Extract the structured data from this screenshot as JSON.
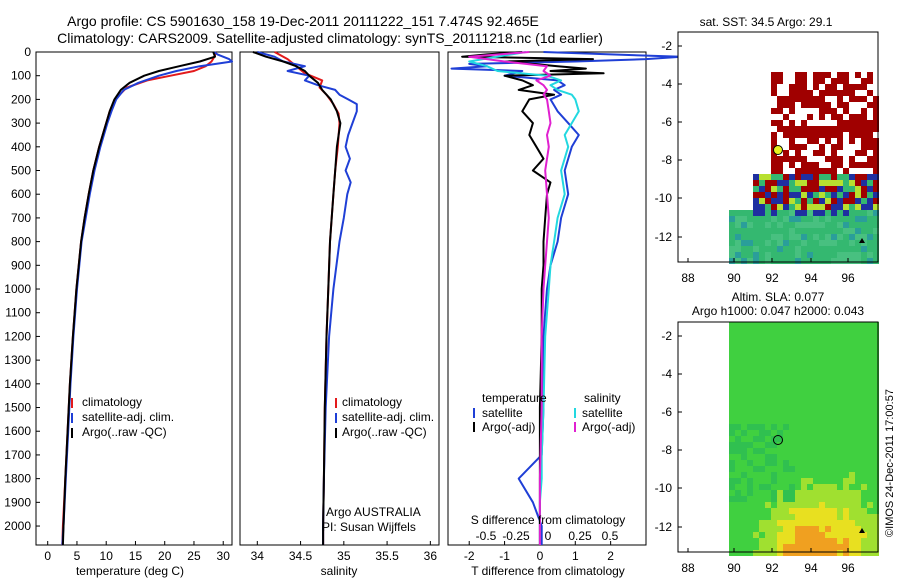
{
  "title_line1": "Argo profile: CS 5901630_158 19-Dec-2011 20111222_151 7.474S 92.465E",
  "title_line2": "Climatology: CARS2009. Satellite-adjusted climatology: synTS_20111218.nc (1d earlier)",
  "colors": {
    "climatology": "#e31a1c",
    "satellite": "#1f3fd6",
    "argo": "#000000",
    "sat_salinity": "#22d8e0",
    "argo_adj": "#e020d0"
  },
  "chart_data": [
    {
      "type": "line",
      "id": "temperature",
      "xlabel": "temperature (deg C)",
      "xlim": [
        -2,
        31.5
      ],
      "xticks": [
        0,
        5,
        10,
        15,
        20,
        25,
        30
      ],
      "ylim": [
        0,
        2080
      ],
      "yticks": [
        0,
        100,
        200,
        300,
        400,
        500,
        600,
        700,
        800,
        900,
        1000,
        1100,
        1200,
        1300,
        1400,
        1500,
        1600,
        1700,
        1800,
        1900,
        2000
      ],
      "legend": [
        "climatology",
        "satellite-adj. clim.",
        "Argo(..raw -QC)"
      ],
      "legend_placement": "lower-middle",
      "series": [
        {
          "name": "climatology",
          "color": "#e31a1c",
          "depth": [
            0,
            20,
            40,
            60,
            80,
            100,
            120,
            150,
            200,
            250,
            300,
            400,
            500,
            600,
            700,
            800,
            1000,
            1200,
            1400,
            1600,
            1800,
            2000,
            2080
          ],
          "values": [
            28.8,
            28.5,
            28,
            27,
            25,
            21,
            17,
            13.5,
            11.5,
            10.6,
            10,
            8.8,
            7.8,
            7,
            6.3,
            5.7,
            4.9,
            4.3,
            3.8,
            3.4,
            3.0,
            2.6,
            2.5
          ]
        },
        {
          "name": "satellite-adj. clim.",
          "color": "#1f3fd6",
          "depth": [
            0,
            10,
            30,
            40,
            60,
            80,
            100,
            130,
            160,
            200,
            250,
            300,
            400,
            500,
            600,
            700,
            800,
            1000,
            1200,
            1400,
            1600,
            1800,
            2000,
            2080
          ],
          "values": [
            28.5,
            29,
            31,
            31.5,
            26,
            22,
            19,
            15.5,
            13,
            11.7,
            10.9,
            10.2,
            9,
            8,
            7.2,
            6.5,
            5.8,
            5,
            4.4,
            3.9,
            3.5,
            3.1,
            2.7,
            2.5
          ]
        },
        {
          "name": "Argo(..raw -QC)",
          "color": "#000000",
          "depth": [
            0,
            20,
            40,
            60,
            80,
            100,
            130,
            160,
            200,
            250,
            300,
            400,
            500,
            600,
            700,
            800,
            1000,
            1200,
            1400,
            1600,
            1800,
            2000,
            2080
          ],
          "values": [
            28.3,
            28.6,
            26,
            22.5,
            19,
            16.5,
            14,
            12.5,
            11.4,
            10.6,
            10,
            8.8,
            7.8,
            7,
            6.3,
            5.7,
            4.9,
            4.3,
            3.8,
            3.4,
            3.0,
            2.7,
            2.6
          ]
        }
      ]
    },
    {
      "type": "line",
      "id": "salinity",
      "xlabel": "salinity",
      "xlim": [
        33.8,
        36.1
      ],
      "xticks": [
        34,
        34.5,
        35,
        35.5,
        36
      ],
      "legend": [
        "climatology",
        "satellite-adj. clim.",
        "Argo(..raw -QC)"
      ],
      "legend_placement": "lower-right",
      "annotation": [
        "Argo AUSTRALIA",
        "PI: Susan Wijffels"
      ],
      "series": [
        {
          "name": "climatology",
          "color": "#e31a1c",
          "depth": [
            0,
            30,
            60,
            90,
            120,
            150,
            180,
            220,
            260,
            300,
            400,
            500,
            600,
            800,
            1000,
            1200,
            1500,
            1800,
            2000,
            2080
          ],
          "values": [
            34.2,
            34.35,
            34.45,
            34.55,
            34.75,
            34.72,
            34.8,
            34.88,
            34.94,
            34.95,
            34.93,
            34.9,
            34.88,
            34.84,
            34.82,
            34.8,
            34.78,
            34.77,
            34.76,
            34.76
          ]
        },
        {
          "name": "satellite-adj. clim.",
          "color": "#1f3fd6",
          "depth": [
            0,
            20,
            40,
            60,
            80,
            100,
            120,
            140,
            160,
            180,
            200,
            220,
            250,
            300,
            350,
            400,
            450,
            500,
            550,
            600,
            700,
            800,
            1000,
            1200,
            1500,
            1800,
            2000,
            2080
          ],
          "values": [
            34.0,
            34.2,
            34.3,
            34.55,
            34.35,
            34.6,
            34.55,
            34.7,
            34.9,
            34.95,
            35.05,
            35.15,
            35.15,
            35.1,
            35.05,
            35.02,
            35.07,
            35.02,
            35.08,
            35.04,
            35.0,
            34.95,
            34.88,
            34.83,
            34.79,
            34.77,
            34.76,
            34.76
          ]
        },
        {
          "name": "Argo(..raw -QC)",
          "color": "#000000",
          "depth": [
            0,
            20,
            40,
            60,
            80,
            100,
            130,
            160,
            200,
            250,
            300,
            350,
            400,
            500,
            600,
            700,
            800,
            1000,
            1200,
            1500,
            1800,
            2000,
            2080
          ],
          "values": [
            33.95,
            34.1,
            34.3,
            34.45,
            34.55,
            34.6,
            34.7,
            34.75,
            34.85,
            34.92,
            34.96,
            34.94,
            34.92,
            34.9,
            34.88,
            34.86,
            34.84,
            34.82,
            34.8,
            34.78,
            34.77,
            34.76,
            34.76
          ]
        }
      ]
    },
    {
      "type": "line",
      "id": "differences",
      "xlabel": "T difference from climatology",
      "top_axis_label": "S difference from climatology",
      "xlim": [
        -2.6,
        3
      ],
      "xticks": [
        -2,
        -1,
        0,
        1,
        2
      ],
      "s_ticks": [
        "-0.5",
        "-0.25",
        "0",
        "0.25",
        "0.5"
      ],
      "legend_titles": [
        "temperature",
        "salinity"
      ],
      "legend": [
        "satellite",
        "Argo(-adj)",
        "satellite",
        "Argo(-adj)"
      ],
      "series": [
        {
          "name": "satellite",
          "color": "#1f3fd6",
          "depth": [
            0,
            10,
            20,
            30,
            40,
            50,
            60,
            70,
            80,
            100,
            120,
            140,
            160,
            180,
            200,
            250,
            300,
            350,
            400,
            500,
            600,
            700,
            800,
            900,
            1000,
            1100,
            1200,
            1500,
            1700,
            1800,
            1900,
            2000,
            2080
          ],
          "values": [
            0.1,
            2,
            4,
            3,
            1,
            -2,
            -1.5,
            -2.5,
            -0.5,
            -1,
            0.5,
            0.7,
            0.4,
            0.6,
            0.3,
            0.5,
            0.8,
            1.1,
            0.9,
            0.7,
            0.8,
            0.6,
            0.5,
            0.3,
            0.2,
            0.15,
            0.1,
            0.1,
            0.05,
            -0.6,
            -0.2,
            0.05,
            0.05
          ]
        },
        {
          "name": "Argo(-adj)",
          "color": "#000000",
          "depth": [
            0,
            10,
            20,
            30,
            40,
            50,
            60,
            70,
            80,
            90,
            100,
            120,
            140,
            160,
            180,
            200,
            250,
            300,
            350,
            400,
            450,
            500,
            550,
            600,
            700,
            800,
            900,
            1000,
            1200,
            1500,
            1800,
            2000,
            2080
          ],
          "values": [
            -0.5,
            -1.5,
            -2.2,
            1.5,
            -1,
            -0.2,
            0.5,
            1.3,
            0.3,
            1.8,
            -1,
            -0.5,
            -0.2,
            -0.6,
            0.4,
            -0.3,
            -0.5,
            -0.2,
            -0.3,
            -0.1,
            0.1,
            -0.2,
            0.3,
            0.2,
            0.15,
            0.1,
            0.1,
            0.05,
            0.05,
            0.0,
            0.0,
            0.0,
            0.0
          ]
        },
        {
          "name": "satellite",
          "color": "#22d8e0",
          "depth": [
            0,
            20,
            40,
            60,
            80,
            100,
            120,
            140,
            160,
            180,
            200,
            250,
            300,
            350,
            400,
            500,
            600,
            700,
            800,
            900,
            1000,
            1200,
            1500,
            1700,
            1800,
            1900,
            2000,
            2080
          ],
          "values": [
            -0.4,
            -1.2,
            -2,
            -1.5,
            -1.2,
            0.2,
            0.6,
            0.3,
            0.5,
            0.9,
            1.0,
            1.1,
            0.9,
            0.7,
            0.8,
            0.6,
            0.7,
            0.5,
            0.4,
            0.3,
            0.25,
            0.15,
            0.1,
            0.05,
            0.05,
            0.0,
            0.0,
            0.0
          ]
        },
        {
          "name": "Argo(-adj)",
          "color": "#e020d0",
          "depth": [
            0,
            20,
            40,
            60,
            80,
            100,
            120,
            140,
            160,
            180,
            200,
            250,
            300,
            350,
            400,
            500,
            600,
            700,
            800,
            900,
            1000,
            1200,
            1500,
            1800,
            2000,
            2080
          ],
          "values": [
            -0.3,
            -2,
            -1,
            0.2,
            0.1,
            0.3,
            -0.1,
            0.1,
            0.2,
            0.1,
            0.2,
            0.25,
            0.3,
            0.2,
            0.25,
            0.15,
            0.2,
            0.25,
            0.2,
            0.15,
            0.1,
            0.05,
            0.05,
            0.0,
            0.0,
            0.0
          ]
        }
      ]
    }
  ],
  "map_top": {
    "title": "sat. SST: 34.5  Argo: 29.1",
    "xticks": [
      "88",
      "90",
      "92",
      "94",
      "96"
    ],
    "yticks": [
      "-2",
      "-4",
      "-6",
      "-8",
      "-10",
      "-12"
    ]
  },
  "map_bottom": {
    "title_line1": "Altim. SLA: 0.077",
    "title_line2": "Argo h1000: 0.047 h2000: 0.043",
    "xticks": [
      "88",
      "90",
      "92",
      "94",
      "96"
    ],
    "yticks": [
      "-2",
      "-4",
      "-6",
      "-8",
      "-10",
      "-12"
    ]
  },
  "credit": "©IMOS 24-Dec-2011 17:00:57"
}
